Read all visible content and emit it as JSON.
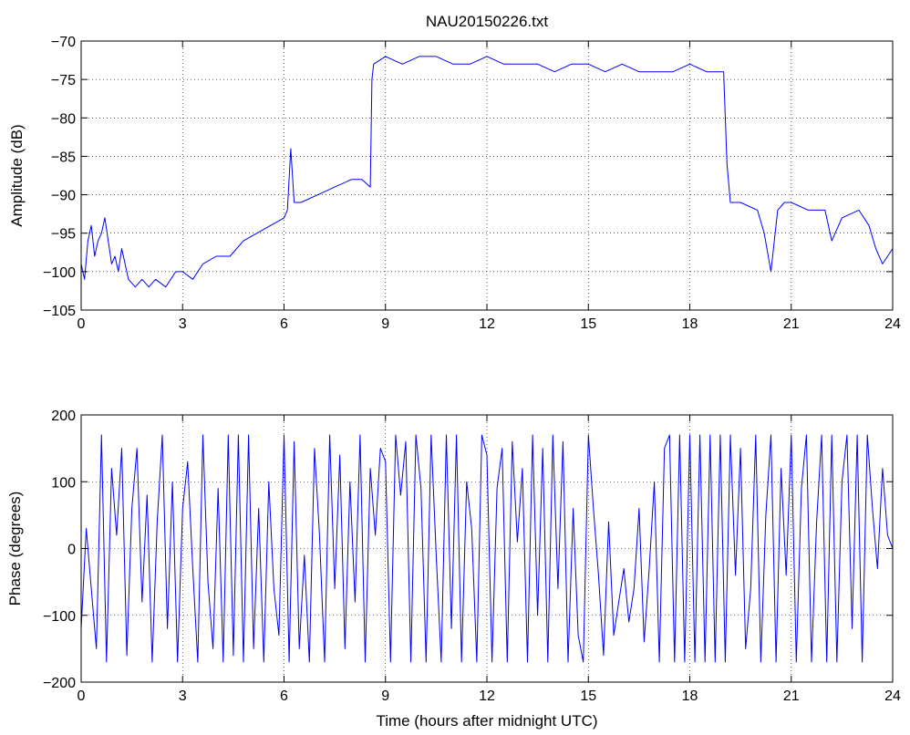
{
  "figure": {
    "title": "NAU20150226.txt"
  },
  "chart_data": [
    {
      "type": "line",
      "name": "amplitude",
      "ylabel": "Amplitude (dB)",
      "xlim": [
        0,
        24
      ],
      "ylim": [
        -105,
        -70
      ],
      "xticks": [
        0,
        3,
        6,
        9,
        12,
        15,
        18,
        21,
        24
      ],
      "yticks": [
        -105,
        -100,
        -95,
        -90,
        -85,
        -80,
        -75,
        -70
      ],
      "grid": true,
      "color": "#0000ff",
      "series": [
        {
          "x": [
            0,
            0.1,
            0.2,
            0.3,
            0.4,
            0.5,
            0.6,
            0.7,
            0.8,
            0.9,
            1.0,
            1.1,
            1.2,
            1.4,
            1.6,
            1.8,
            2.0,
            2.2,
            2.5,
            2.8,
            3.0,
            3.3,
            3.6,
            4.0,
            4.4,
            4.8,
            5.2,
            5.6,
            6.0,
            6.1,
            6.2,
            6.3,
            6.5,
            7.0,
            7.5,
            8.0,
            8.3,
            8.55,
            8.6,
            8.65,
            9.0,
            9.5,
            10.0,
            10.5,
            11.0,
            11.5,
            12.0,
            12.5,
            13.0,
            13.5,
            14.0,
            14.5,
            15.0,
            15.5,
            16.0,
            16.5,
            17.0,
            17.5,
            18.0,
            18.5,
            19.0,
            19.1,
            19.2,
            19.3,
            19.5,
            20.0,
            20.2,
            20.4,
            20.6,
            20.8,
            21.0,
            21.5,
            22.0,
            22.2,
            22.5,
            23.0,
            23.3,
            23.5,
            23.7,
            24.0
          ],
          "y": [
            -99,
            -101,
            -96,
            -94,
            -98,
            -96,
            -95,
            -93,
            -96,
            -99,
            -98,
            -100,
            -97,
            -101,
            -102,
            -101,
            -102,
            -101,
            -102,
            -100,
            -100,
            -101,
            -99,
            -98,
            -98,
            -96,
            -95,
            -94,
            -93,
            -92,
            -84,
            -91,
            -91,
            -90,
            -89,
            -88,
            -88,
            -89,
            -75,
            -73,
            -72,
            -73,
            -72,
            -72,
            -73,
            -73,
            -72,
            -73,
            -73,
            -73,
            -74,
            -73,
            -73,
            -74,
            -73,
            -74,
            -74,
            -74,
            -73,
            -74,
            -74,
            -86,
            -91,
            -91,
            -91,
            -92,
            -95,
            -100,
            -92,
            -91,
            -91,
            -92,
            -92,
            -96,
            -93,
            -92,
            -94,
            -97,
            -99,
            -97
          ]
        }
      ]
    },
    {
      "type": "line",
      "name": "phase",
      "xlabel": "Time (hours after midnight UTC)",
      "ylabel": "Phase (degrees)",
      "xlim": [
        0,
        24
      ],
      "ylim": [
        -200,
        200
      ],
      "xticks": [
        0,
        3,
        6,
        9,
        12,
        15,
        18,
        21,
        24
      ],
      "yticks": [
        -200,
        -100,
        0,
        100,
        200
      ],
      "grid": true,
      "color": "#0000ff",
      "series": [
        {
          "x": [
            0,
            0.15,
            0.3,
            0.45,
            0.6,
            0.75,
            0.9,
            1.05,
            1.2,
            1.35,
            1.5,
            1.65,
            1.8,
            1.95,
            2.1,
            2.25,
            2.4,
            2.55,
            2.7,
            2.85,
            3.0,
            3.15,
            3.3,
            3.45,
            3.6,
            3.75,
            3.9,
            4.05,
            4.2,
            4.35,
            4.5,
            4.65,
            4.8,
            4.95,
            5.1,
            5.25,
            5.4,
            5.55,
            5.7,
            5.85,
            6.0,
            6.15,
            6.3,
            6.45,
            6.6,
            6.75,
            6.9,
            7.05,
            7.2,
            7.35,
            7.5,
            7.65,
            7.8,
            7.95,
            8.1,
            8.25,
            8.4,
            8.55,
            8.7,
            8.85,
            9.0,
            9.15,
            9.3,
            9.45,
            9.6,
            9.75,
            9.9,
            10.05,
            10.2,
            10.35,
            10.5,
            10.65,
            10.8,
            10.95,
            11.1,
            11.25,
            11.4,
            11.55,
            11.7,
            11.85,
            12.0,
            12.15,
            12.3,
            12.45,
            12.6,
            12.75,
            12.9,
            13.05,
            13.2,
            13.35,
            13.5,
            13.65,
            13.8,
            13.95,
            14.1,
            14.25,
            14.4,
            14.55,
            14.7,
            14.85,
            15.0,
            15.15,
            15.3,
            15.45,
            15.6,
            15.75,
            15.9,
            16.05,
            16.2,
            16.35,
            16.5,
            16.65,
            16.8,
            16.95,
            17.1,
            17.25,
            17.4,
            17.55,
            17.7,
            17.85,
            18.0,
            18.15,
            18.3,
            18.45,
            18.6,
            18.75,
            18.9,
            19.05,
            19.2,
            19.35,
            19.5,
            19.65,
            19.8,
            19.95,
            20.1,
            20.25,
            20.4,
            20.55,
            20.7,
            20.85,
            21.0,
            21.15,
            21.3,
            21.45,
            21.6,
            21.75,
            21.9,
            22.05,
            22.2,
            22.35,
            22.5,
            22.65,
            22.8,
            22.95,
            23.1,
            23.25,
            23.4,
            23.55,
            23.7,
            23.85,
            24.0
          ],
          "y": [
            -120,
            30,
            -60,
            -150,
            170,
            -170,
            120,
            20,
            150,
            -160,
            60,
            150,
            -80,
            80,
            -170,
            40,
            170,
            -120,
            100,
            -170,
            60,
            130,
            -30,
            -170,
            170,
            -50,
            -150,
            90,
            -170,
            170,
            -160,
            170,
            -170,
            170,
            -150,
            60,
            -170,
            100,
            -60,
            -130,
            170,
            -170,
            160,
            -150,
            -10,
            -170,
            150,
            20,
            -170,
            170,
            -60,
            140,
            -150,
            100,
            -80,
            170,
            -170,
            120,
            20,
            150,
            130,
            -170,
            170,
            80,
            160,
            -170,
            170,
            90,
            -170,
            170,
            -10,
            -170,
            170,
            -120,
            170,
            -170,
            100,
            30,
            -170,
            170,
            140,
            -170,
            90,
            150,
            -170,
            160,
            10,
            120,
            -170,
            170,
            -100,
            150,
            -170,
            170,
            -60,
            160,
            -170,
            60,
            -130,
            -170,
            170,
            60,
            -40,
            -160,
            40,
            -130,
            -80,
            -30,
            -110,
            -60,
            60,
            -140,
            -30,
            100,
            -170,
            150,
            170,
            -170,
            170,
            -170,
            170,
            -170,
            170,
            -170,
            170,
            -170,
            170,
            -170,
            170,
            -40,
            150,
            -150,
            -60,
            170,
            -170,
            50,
            170,
            -170,
            120,
            -40,
            170,
            -170,
            90,
            170,
            -170,
            40,
            170,
            -170,
            170,
            -170,
            100,
            170,
            -120,
            170,
            -170,
            170,
            60,
            -30,
            120,
            20,
            0
          ]
        }
      ]
    }
  ]
}
